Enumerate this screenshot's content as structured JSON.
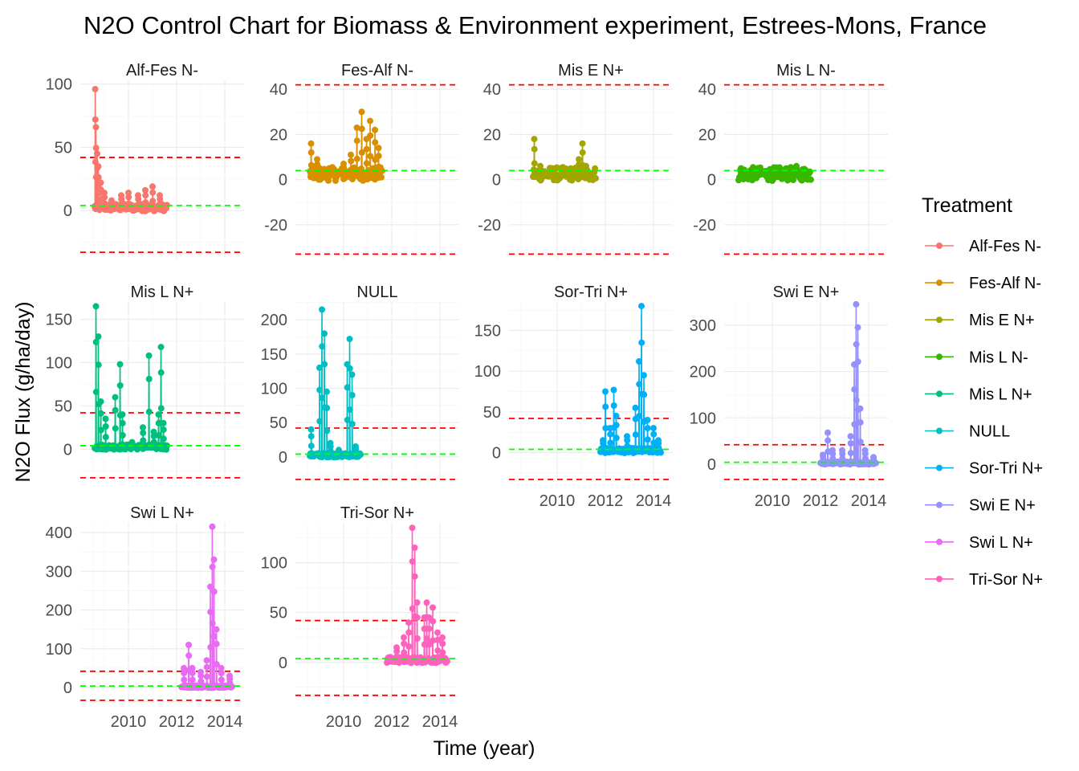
{
  "chart_data": {
    "type": "line",
    "title": "N2O Control Chart for Biomass & Environment experiment, Estrees-Mons, France",
    "xlabel": "Time (year)",
    "ylabel": "N2O Flux (g/ha/day)",
    "x_ticks": [
      "2010",
      "2012",
      "2014"
    ],
    "xlim": [
      2008.0,
      2014.8
    ],
    "grid": true,
    "legend": {
      "title": "Treatment",
      "position": "right",
      "entries": [
        {
          "label": "Alf-Fes N-",
          "color": "#F8766D"
        },
        {
          "label": "Fes-Alf N-",
          "color": "#D89000"
        },
        {
          "label": "Mis E N+",
          "color": "#A3A500"
        },
        {
          "label": "Mis L N-",
          "color": "#39B600"
        },
        {
          "label": "Mis L N+",
          "color": "#00BF7D"
        },
        {
          "label": "NULL",
          "color": "#00BFC4"
        },
        {
          "label": "Sor-Tri N+",
          "color": "#00B0F6"
        },
        {
          "label": "Swi E N+",
          "color": "#9590FF"
        },
        {
          "label": "Swi L N+",
          "color": "#E76BF3"
        },
        {
          "label": "Tri-Sor N+",
          "color": "#FF62BC"
        }
      ]
    },
    "control_limits": {
      "center": 4.0,
      "upper": 42.0,
      "lower": -33.0,
      "center_color": "#00FF00",
      "limit_color": "#FF0000"
    },
    "panels": [
      {
        "name": "Alf-Fes N-",
        "color": "#F8766D",
        "y_ticks": [
          0,
          50,
          100
        ],
        "ylim": [
          -38,
          103
        ],
        "x_range": [
          2008.6,
          2011.6
        ],
        "peaks": [
          [
            2008.62,
            96
          ],
          [
            2008.65,
            66
          ],
          [
            2008.7,
            45
          ],
          [
            2008.75,
            35
          ],
          [
            2008.85,
            22
          ],
          [
            2009.0,
            14
          ],
          [
            2009.3,
            8
          ],
          [
            2009.7,
            12
          ],
          [
            2010.0,
            14
          ],
          [
            2010.4,
            12
          ],
          [
            2010.7,
            16
          ],
          [
            2011.0,
            19
          ],
          [
            2011.3,
            12
          ]
        ]
      },
      {
        "name": "Fes-Alf N-",
        "color": "#D89000",
        "y_ticks": [
          -20,
          0,
          20,
          40
        ],
        "ylim": [
          -35,
          44
        ],
        "x_range": [
          2008.6,
          2011.6
        ],
        "peaks": [
          [
            2008.65,
            16
          ],
          [
            2008.9,
            9
          ],
          [
            2009.4,
            5
          ],
          [
            2010.0,
            7
          ],
          [
            2010.3,
            11
          ],
          [
            2010.55,
            23
          ],
          [
            2010.75,
            30
          ],
          [
            2010.95,
            18
          ],
          [
            2011.1,
            26
          ],
          [
            2011.3,
            22
          ],
          [
            2011.45,
            14
          ]
        ]
      },
      {
        "name": "Mis E N+",
        "color": "#A3A500",
        "y_ticks": [
          -20,
          0,
          20,
          40
        ],
        "ylim": [
          -35,
          44
        ],
        "x_range": [
          2009.0,
          2011.6
        ],
        "peaks": [
          [
            2009.05,
            18
          ],
          [
            2009.3,
            6
          ],
          [
            2009.8,
            5
          ],
          [
            2010.4,
            4
          ],
          [
            2010.9,
            9
          ],
          [
            2011.05,
            16
          ],
          [
            2011.2,
            6
          ]
        ]
      },
      {
        "name": "Mis L N-",
        "color": "#39B600",
        "y_ticks": [
          -20,
          0,
          20,
          40
        ],
        "ylim": [
          -35,
          44
        ],
        "x_range": [
          2008.6,
          2011.6
        ],
        "peaks": [
          [
            2008.7,
            5
          ],
          [
            2009.2,
            4
          ],
          [
            2010.2,
            3
          ],
          [
            2010.7,
            5
          ],
          [
            2011.0,
            6
          ],
          [
            2011.4,
            4
          ]
        ]
      },
      {
        "name": "Mis L N+",
        "color": "#00BF7D",
        "y_ticks": [
          0,
          50,
          100,
          150
        ],
        "ylim": [
          -35,
          170
        ],
        "x_range": [
          2008.6,
          2011.6
        ],
        "peaks": [
          [
            2008.65,
            165
          ],
          [
            2008.75,
            130
          ],
          [
            2008.85,
            55
          ],
          [
            2009.05,
            35
          ],
          [
            2009.45,
            60
          ],
          [
            2009.65,
            98
          ],
          [
            2009.75,
            40
          ],
          [
            2010.15,
            8
          ],
          [
            2010.6,
            25
          ],
          [
            2010.85,
            108
          ],
          [
            2011.05,
            20
          ],
          [
            2011.25,
            40
          ],
          [
            2011.35,
            118
          ],
          [
            2011.45,
            30
          ]
        ]
      },
      {
        "name": "NULL",
        "color": "#00BFC4",
        "y_ticks": [
          0,
          50,
          100,
          150,
          200
        ],
        "ylim": [
          -33,
          226
        ],
        "x_range": [
          2008.6,
          2010.7
        ],
        "peaks": [
          [
            2008.65,
            40
          ],
          [
            2009.0,
            130
          ],
          [
            2009.1,
            215
          ],
          [
            2009.2,
            180
          ],
          [
            2009.3,
            95
          ],
          [
            2009.45,
            20
          ],
          [
            2009.8,
            10
          ],
          [
            2010.15,
            135
          ],
          [
            2010.25,
            172
          ],
          [
            2010.35,
            120
          ],
          [
            2010.5,
            15
          ]
        ]
      },
      {
        "name": "Sor-Tri N+",
        "color": "#00B0F6",
        "y_ticks": [
          0,
          50,
          100,
          150
        ],
        "ylim": [
          -33,
          185
        ],
        "x_range": [
          2011.8,
          2014.3
        ],
        "peaks": [
          [
            2011.9,
            15
          ],
          [
            2012.0,
            75
          ],
          [
            2012.2,
            30
          ],
          [
            2012.35,
            77
          ],
          [
            2012.45,
            45
          ],
          [
            2012.9,
            20
          ],
          [
            2013.25,
            55
          ],
          [
            2013.4,
            112
          ],
          [
            2013.5,
            180
          ],
          [
            2013.6,
            95
          ],
          [
            2013.75,
            40
          ],
          [
            2014.0,
            30
          ],
          [
            2014.2,
            15
          ]
        ]
      },
      {
        "name": "Swi E N+",
        "color": "#9590FF",
        "y_ticks": [
          0,
          100,
          200,
          300
        ],
        "ylim": [
          -33,
          350
        ],
        "x_range": [
          2012.0,
          2014.3
        ],
        "peaks": [
          [
            2012.1,
            20
          ],
          [
            2012.3,
            68
          ],
          [
            2012.5,
            30
          ],
          [
            2012.9,
            30
          ],
          [
            2013.25,
            60
          ],
          [
            2013.4,
            215
          ],
          [
            2013.48,
            345
          ],
          [
            2013.55,
            295
          ],
          [
            2013.65,
            120
          ],
          [
            2013.85,
            30
          ],
          [
            2014.2,
            15
          ]
        ]
      },
      {
        "name": "Swi L N+",
        "color": "#E76BF3",
        "y_ticks": [
          0,
          100,
          200,
          300,
          400
        ],
        "ylim": [
          -33,
          425
        ],
        "x_range": [
          2012.2,
          2014.3
        ],
        "peaks": [
          [
            2012.3,
            50
          ],
          [
            2012.5,
            110
          ],
          [
            2012.65,
            50
          ],
          [
            2013.0,
            40
          ],
          [
            2013.25,
            70
          ],
          [
            2013.4,
            260
          ],
          [
            2013.48,
            415
          ],
          [
            2013.55,
            330
          ],
          [
            2013.65,
            150
          ],
          [
            2013.85,
            50
          ],
          [
            2014.2,
            30
          ]
        ]
      },
      {
        "name": "Tri-Sor N+",
        "color": "#FF62BC",
        "y_ticks": [
          0,
          50,
          100
        ],
        "ylim": [
          -38,
          140
        ],
        "x_range": [
          2011.8,
          2014.3
        ],
        "peaks": [
          [
            2011.9,
            5
          ],
          [
            2012.2,
            15
          ],
          [
            2012.5,
            25
          ],
          [
            2012.7,
            40
          ],
          [
            2012.85,
            135
          ],
          [
            2012.95,
            115
          ],
          [
            2013.05,
            60
          ],
          [
            2013.35,
            45
          ],
          [
            2013.45,
            60
          ],
          [
            2013.55,
            45
          ],
          [
            2013.7,
            55
          ],
          [
            2013.9,
            30
          ],
          [
            2014.1,
            25
          ]
        ]
      }
    ]
  }
}
